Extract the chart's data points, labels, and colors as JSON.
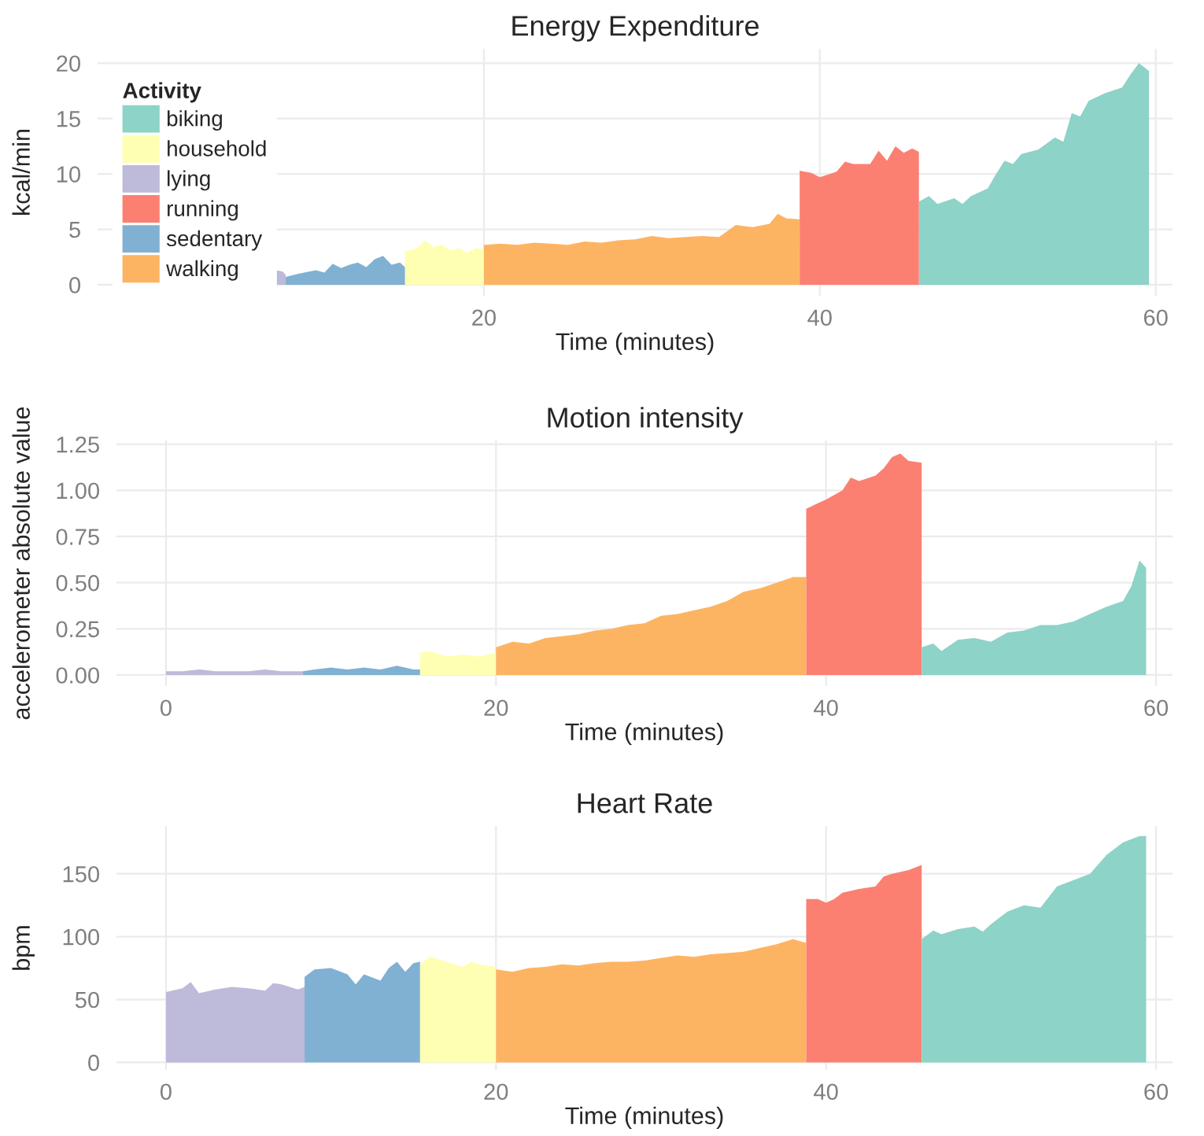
{
  "chart_data": [
    {
      "type": "area",
      "title": "Energy Expenditure",
      "xlabel": "Time (minutes)",
      "ylabel": "kcal/min",
      "legend_title": "Activity",
      "legend": "left",
      "grid": true,
      "xlim": [
        -3,
        61
      ],
      "xticks": [
        20,
        40,
        60
      ],
      "ylim": [
        -1,
        21.3
      ],
      "yticks": [
        0,
        5,
        10,
        15,
        20
      ],
      "series": [
        {
          "name": "biking",
          "color": "#8dd3c7",
          "x": [
            45.9,
            46.5,
            47,
            48,
            48.5,
            49,
            50,
            50.5,
            51,
            51.5,
            52,
            53,
            54,
            54.5,
            55,
            55.5,
            56,
            57,
            58,
            58.5,
            59,
            59.6
          ],
          "values": [
            7.5,
            8.0,
            7.3,
            7.8,
            7.3,
            8.0,
            8.7,
            10.0,
            11.2,
            10.9,
            11.8,
            12.2,
            13.3,
            12.9,
            15.5,
            15.2,
            16.6,
            17.3,
            17.8,
            19.0,
            20.0,
            19.3
          ]
        },
        {
          "name": "household",
          "color": "#ffffb3",
          "x": [
            15.3,
            16,
            16.5,
            17,
            17.5,
            18,
            18.5,
            19,
            19.5,
            20
          ],
          "values": [
            3.0,
            3.3,
            4.0,
            3.4,
            3.6,
            3.1,
            3.3,
            2.9,
            3.3,
            3.2
          ]
        },
        {
          "name": "lying",
          "color": "#bebada",
          "x": [
            7.6,
            8.0,
            8.2
          ],
          "values": [
            1.3,
            1.2,
            0.9
          ]
        },
        {
          "name": "running",
          "color": "#fb8072",
          "x": [
            38.8,
            39.5,
            40,
            41,
            41.5,
            42,
            43,
            43.5,
            44,
            44.5,
            45,
            45.5,
            45.9
          ],
          "values": [
            10.3,
            10.1,
            9.7,
            10.2,
            11.1,
            10.9,
            10.9,
            12.1,
            11.2,
            12.5,
            11.9,
            12.3,
            12.0
          ]
        },
        {
          "name": "sedentary",
          "color": "#80b1d3",
          "x": [
            8.2,
            9,
            10,
            10.5,
            11,
            11.5,
            12,
            12.5,
            13,
            13.5,
            14,
            14.5,
            15,
            15.3
          ],
          "values": [
            0.7,
            1.0,
            1.3,
            1.1,
            1.9,
            1.5,
            1.8,
            2.0,
            1.6,
            2.3,
            2.6,
            1.8,
            2.0,
            1.6
          ]
        },
        {
          "name": "walking",
          "color": "#fdb462",
          "x": [
            20,
            21,
            22,
            23,
            24,
            25,
            26,
            27,
            28,
            29,
            30,
            31,
            32,
            33,
            34,
            35,
            36,
            37,
            37.5,
            38,
            38.8
          ],
          "values": [
            3.6,
            3.7,
            3.6,
            3.8,
            3.7,
            3.6,
            3.9,
            3.8,
            4.0,
            4.1,
            4.4,
            4.2,
            4.3,
            4.4,
            4.3,
            5.4,
            5.2,
            5.5,
            6.4,
            6.0,
            5.9
          ]
        }
      ]
    },
    {
      "type": "area",
      "title": "Motion intensity",
      "xlabel": "Time (minutes)",
      "ylabel": "accelerometer absolute value",
      "grid": true,
      "xlim": [
        -3,
        61
      ],
      "xticks": [
        0,
        20,
        40,
        60
      ],
      "ylim": [
        -0.06,
        1.27
      ],
      "yticks": [
        {
          "value": 0,
          "label": "0.00"
        },
        {
          "value": 0.25,
          "label": "0.25"
        },
        {
          "value": 0.5,
          "label": "0.50"
        },
        {
          "value": 0.75,
          "label": "0.75"
        },
        {
          "value": 1,
          "label": "1.00"
        },
        {
          "value": 1.25,
          "label": "1.25"
        }
      ],
      "series": [
        {
          "color": "#bebada",
          "x": [
            0,
            1,
            2,
            3,
            4,
            5,
            6,
            7,
            8.3
          ],
          "values": [
            0.02,
            0.02,
            0.03,
            0.02,
            0.02,
            0.02,
            0.03,
            0.02,
            0.02
          ]
        },
        {
          "color": "#80b1d3",
          "x": [
            8.3,
            9,
            10,
            11,
            12,
            13,
            14,
            15,
            15.4
          ],
          "values": [
            0.02,
            0.03,
            0.04,
            0.03,
            0.04,
            0.03,
            0.05,
            0.03,
            0.03
          ]
        },
        {
          "color": "#ffffb3",
          "x": [
            15.4,
            16,
            17,
            18,
            19,
            20
          ],
          "values": [
            0.12,
            0.13,
            0.1,
            0.11,
            0.1,
            0.12
          ]
        },
        {
          "color": "#fdb462",
          "x": [
            20,
            21,
            22,
            23,
            24,
            25,
            26,
            27,
            28,
            29,
            30,
            31,
            32,
            33,
            34,
            35,
            36,
            37,
            38,
            38.8
          ],
          "values": [
            0.15,
            0.18,
            0.17,
            0.2,
            0.21,
            0.22,
            0.24,
            0.25,
            0.27,
            0.28,
            0.32,
            0.33,
            0.35,
            0.37,
            0.4,
            0.45,
            0.47,
            0.5,
            0.53,
            0.53
          ]
        },
        {
          "color": "#fb8072",
          "x": [
            38.8,
            39.5,
            40,
            41,
            41.5,
            42,
            43,
            43.5,
            44,
            44.5,
            45,
            45.8
          ],
          "values": [
            0.9,
            0.93,
            0.95,
            1.0,
            1.07,
            1.05,
            1.08,
            1.12,
            1.18,
            1.2,
            1.16,
            1.15
          ]
        },
        {
          "color": "#8dd3c7",
          "x": [
            45.8,
            46.5,
            47,
            48,
            49,
            50,
            51,
            52,
            53,
            54,
            55,
            56,
            57,
            58,
            58.5,
            59,
            59.4
          ],
          "values": [
            0.15,
            0.17,
            0.13,
            0.19,
            0.2,
            0.18,
            0.23,
            0.24,
            0.27,
            0.27,
            0.29,
            0.33,
            0.37,
            0.4,
            0.48,
            0.62,
            0.58
          ]
        }
      ]
    },
    {
      "type": "area",
      "title": "Heart Rate",
      "xlabel": "Time (minutes)",
      "ylabel": "bpm",
      "grid": true,
      "xlim": [
        -3,
        61
      ],
      "xticks": [
        0,
        20,
        40,
        60
      ],
      "ylim": [
        -6,
        188
      ],
      "yticks": [
        0,
        50,
        100,
        150
      ],
      "series": [
        {
          "color": "#bebada",
          "x": [
            0,
            1,
            1.5,
            2,
            3,
            4,
            5,
            6,
            6.5,
            7,
            8,
            8.4
          ],
          "values": [
            56,
            59,
            64,
            55,
            58,
            60,
            59,
            57,
            63,
            62,
            58,
            60
          ]
        },
        {
          "color": "#80b1d3",
          "x": [
            8.4,
            9,
            10,
            11,
            11.5,
            12,
            13,
            13.5,
            14,
            14.5,
            15,
            15.4
          ],
          "values": [
            68,
            74,
            75,
            70,
            62,
            70,
            65,
            75,
            80,
            72,
            79,
            80
          ]
        },
        {
          "color": "#ffffb3",
          "x": [
            15.4,
            16,
            17,
            18,
            18.5,
            19,
            20
          ],
          "values": [
            78,
            84,
            80,
            76,
            80,
            78,
            76
          ]
        },
        {
          "color": "#fdb462",
          "x": [
            20,
            21,
            22,
            23,
            24,
            25,
            26,
            27,
            28,
            29,
            30,
            31,
            32,
            33,
            34,
            35,
            36,
            37,
            38,
            38.8
          ],
          "values": [
            74,
            72,
            75,
            76,
            78,
            77,
            79,
            80,
            80,
            81,
            83,
            85,
            84,
            86,
            87,
            88,
            91,
            94,
            98,
            95
          ]
        },
        {
          "color": "#fb8072",
          "x": [
            38.8,
            39.5,
            40,
            40.5,
            41,
            42,
            43,
            43.5,
            44,
            45,
            45.8
          ],
          "values": [
            130,
            130,
            127,
            130,
            135,
            138,
            140,
            148,
            150,
            153,
            157
          ]
        },
        {
          "color": "#8dd3c7",
          "x": [
            45.8,
            46.5,
            47,
            48,
            49,
            49.5,
            50,
            51,
            52,
            53,
            54,
            55,
            56,
            57,
            58,
            59,
            59.4
          ],
          "values": [
            98,
            105,
            102,
            106,
            108,
            104,
            110,
            120,
            125,
            123,
            140,
            145,
            150,
            165,
            175,
            180,
            180
          ]
        }
      ]
    }
  ]
}
